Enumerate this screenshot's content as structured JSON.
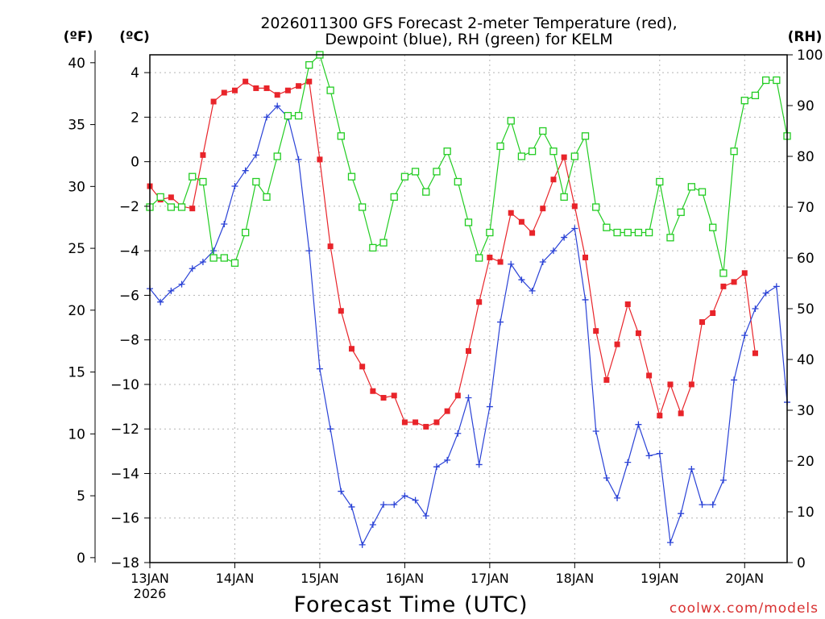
{
  "chart_data": {
    "type": "line",
    "title_line1": "2026011300 GFS Forecast 2-meter Temperature (red),",
    "title_line2": "Dewpoint (blue), RH (green) for KELM",
    "xlabel": "Forecast Time (UTC)",
    "unit_f": "(ºF)",
    "unit_c": "(ºC)",
    "unit_rh": "(RH)",
    "credit": "coolwx.com/models",
    "x_range_days": [
      0,
      7.5
    ],
    "x_ticks": [
      {
        "day": 0,
        "label": "13JAN",
        "sub": "2026"
      },
      {
        "day": 1,
        "label": "14JAN",
        "sub": ""
      },
      {
        "day": 2,
        "label": "15JAN",
        "sub": ""
      },
      {
        "day": 3,
        "label": "16JAN",
        "sub": ""
      },
      {
        "day": 4,
        "label": "17JAN",
        "sub": ""
      },
      {
        "day": 5,
        "label": "18JAN",
        "sub": ""
      },
      {
        "day": 6,
        "label": "19JAN",
        "sub": ""
      },
      {
        "day": 7,
        "label": "20JAN",
        "sub": ""
      }
    ],
    "ylim_c": [
      -18,
      4.8
    ],
    "yticks_c": [
      {
        "v": 4,
        "label": "4"
      },
      {
        "v": 2,
        "label": "2"
      },
      {
        "v": 0,
        "label": "0"
      },
      {
        "v": -2,
        "label": "−2"
      },
      {
        "v": -4,
        "label": "−4"
      },
      {
        "v": -6,
        "label": "−6"
      },
      {
        "v": -8,
        "label": "−8"
      },
      {
        "v": -10,
        "label": "−10"
      },
      {
        "v": -12,
        "label": "−12"
      },
      {
        "v": -14,
        "label": "−14"
      },
      {
        "v": -16,
        "label": "−16"
      },
      {
        "v": -18,
        "label": "−18"
      }
    ],
    "yticks_f": [
      {
        "v": 0,
        "label": "0"
      },
      {
        "v": 5,
        "label": "5"
      },
      {
        "v": 10,
        "label": "10"
      },
      {
        "v": 15,
        "label": "15"
      },
      {
        "v": 20,
        "label": "20"
      },
      {
        "v": 25,
        "label": "25"
      },
      {
        "v": 30,
        "label": "30"
      },
      {
        "v": 35,
        "label": "35"
      },
      {
        "v": 40,
        "label": "40"
      }
    ],
    "ylim_rh": [
      0,
      100
    ],
    "yticks_rh": [
      {
        "v": 0,
        "label": "0"
      },
      {
        "v": 10,
        "label": "10"
      },
      {
        "v": 20,
        "label": "20"
      },
      {
        "v": 30,
        "label": "30"
      },
      {
        "v": 40,
        "label": "40"
      },
      {
        "v": 50,
        "label": "50"
      },
      {
        "v": 60,
        "label": "60"
      },
      {
        "v": 70,
        "label": "70"
      },
      {
        "v": 80,
        "label": "80"
      },
      {
        "v": 90,
        "label": "90"
      },
      {
        "v": 100,
        "label": "100"
      }
    ],
    "series": [
      {
        "name": "2-meter Temperature (°C)",
        "color": "#e8242a",
        "marker": "filled-square",
        "points": [
          [
            0,
            -1.1
          ],
          [
            0.125,
            -1.7
          ],
          [
            0.25,
            -1.6
          ],
          [
            0.375,
            -2.0
          ],
          [
            0.5,
            -2.1
          ],
          [
            0.625,
            0.3
          ],
          [
            0.75,
            2.7
          ],
          [
            0.875,
            3.1
          ],
          [
            1.0,
            3.2
          ],
          [
            1.125,
            3.6
          ],
          [
            1.25,
            3.3
          ],
          [
            1.375,
            3.3
          ],
          [
            1.5,
            3.0
          ],
          [
            1.625,
            3.2
          ],
          [
            1.75,
            3.4
          ],
          [
            1.875,
            3.6
          ],
          [
            2.0,
            0.1
          ],
          [
            2.125,
            -3.8
          ],
          [
            2.25,
            -6.7
          ],
          [
            2.375,
            -8.4
          ],
          [
            2.5,
            -9.2
          ],
          [
            2.625,
            -10.3
          ],
          [
            2.75,
            -10.6
          ],
          [
            2.875,
            -10.5
          ],
          [
            3.0,
            -11.7
          ],
          [
            3.125,
            -11.7
          ],
          [
            3.25,
            -11.9
          ],
          [
            3.375,
            -11.7
          ],
          [
            3.5,
            -11.2
          ],
          [
            3.625,
            -10.5
          ],
          [
            3.75,
            -8.5
          ],
          [
            3.875,
            -6.3
          ],
          [
            4.0,
            -4.3
          ],
          [
            4.125,
            -4.5
          ],
          [
            4.25,
            -2.3
          ],
          [
            4.375,
            -2.7
          ],
          [
            4.5,
            -3.2
          ],
          [
            4.625,
            -2.1
          ],
          [
            4.75,
            -0.8
          ],
          [
            4.875,
            0.2
          ],
          [
            5.0,
            -2.0
          ],
          [
            5.125,
            -4.3
          ],
          [
            5.25,
            -7.6
          ],
          [
            5.375,
            -9.8
          ],
          [
            5.5,
            -8.2
          ],
          [
            5.625,
            -6.4
          ],
          [
            5.75,
            -7.7
          ],
          [
            5.875,
            -9.6
          ],
          [
            6.0,
            -11.4
          ],
          [
            6.125,
            -10.0
          ],
          [
            6.25,
            -11.3
          ],
          [
            6.375,
            -10.0
          ],
          [
            6.5,
            -7.2
          ],
          [
            6.625,
            -6.8
          ],
          [
            6.75,
            -5.6
          ],
          [
            6.875,
            -5.4
          ],
          [
            7.0,
            -5.0
          ],
          [
            7.125,
            -8.6
          ]
        ]
      },
      {
        "name": "Dewpoint (°C)",
        "color": "#2a42d6",
        "marker": "plus",
        "points": [
          [
            0,
            -5.7
          ],
          [
            0.125,
            -6.3
          ],
          [
            0.25,
            -5.8
          ],
          [
            0.375,
            -5.5
          ],
          [
            0.5,
            -4.8
          ],
          [
            0.625,
            -4.5
          ],
          [
            0.75,
            -4.0
          ],
          [
            0.875,
            -2.8
          ],
          [
            1.0,
            -1.1
          ],
          [
            1.125,
            -0.4
          ],
          [
            1.25,
            0.3
          ],
          [
            1.375,
            2.0
          ],
          [
            1.5,
            2.5
          ],
          [
            1.625,
            2.0
          ],
          [
            1.75,
            0.1
          ],
          [
            1.875,
            -4.0
          ],
          [
            2.0,
            -9.3
          ],
          [
            2.125,
            -12.0
          ],
          [
            2.25,
            -14.8
          ],
          [
            2.375,
            -15.5
          ],
          [
            2.5,
            -17.2
          ],
          [
            2.625,
            -16.3
          ],
          [
            2.75,
            -15.4
          ],
          [
            2.875,
            -15.4
          ],
          [
            3.0,
            -15.0
          ],
          [
            3.125,
            -15.2
          ],
          [
            3.25,
            -15.9
          ],
          [
            3.375,
            -13.7
          ],
          [
            3.5,
            -13.4
          ],
          [
            3.625,
            -12.2
          ],
          [
            3.75,
            -10.6
          ],
          [
            3.875,
            -13.6
          ],
          [
            4.0,
            -11.0
          ],
          [
            4.125,
            -7.2
          ],
          [
            4.25,
            -4.6
          ],
          [
            4.375,
            -5.3
          ],
          [
            4.5,
            -5.8
          ],
          [
            4.625,
            -4.5
          ],
          [
            4.75,
            -4.0
          ],
          [
            4.875,
            -3.4
          ],
          [
            5.0,
            -3.0
          ],
          [
            5.125,
            -6.2
          ],
          [
            5.25,
            -12.1
          ],
          [
            5.375,
            -14.2
          ],
          [
            5.5,
            -15.1
          ],
          [
            5.625,
            -13.5
          ],
          [
            5.75,
            -11.8
          ],
          [
            5.875,
            -13.2
          ],
          [
            6.0,
            -13.1
          ],
          [
            6.125,
            -17.1
          ],
          [
            6.25,
            -15.8
          ],
          [
            6.375,
            -13.8
          ],
          [
            6.5,
            -15.4
          ],
          [
            6.625,
            -15.4
          ],
          [
            6.75,
            -14.3
          ],
          [
            6.875,
            -9.8
          ],
          [
            7.0,
            -7.8
          ],
          [
            7.125,
            -6.6
          ],
          [
            7.25,
            -5.9
          ],
          [
            7.375,
            -5.6
          ],
          [
            7.5,
            -10.8
          ]
        ]
      },
      {
        "name": "RH (%)",
        "color": "#22cc22",
        "marker": "open-square",
        "points": [
          [
            0,
            70
          ],
          [
            0.125,
            72
          ],
          [
            0.25,
            70
          ],
          [
            0.375,
            70
          ],
          [
            0.5,
            76
          ],
          [
            0.625,
            75
          ],
          [
            0.75,
            60
          ],
          [
            0.875,
            60
          ],
          [
            1.0,
            59
          ],
          [
            1.125,
            65
          ],
          [
            1.25,
            75
          ],
          [
            1.375,
            72
          ],
          [
            1.5,
            80
          ],
          [
            1.625,
            88
          ],
          [
            1.75,
            88
          ],
          [
            1.875,
            98
          ],
          [
            2.0,
            100
          ],
          [
            2.125,
            93
          ],
          [
            2.25,
            84
          ],
          [
            2.375,
            76
          ],
          [
            2.5,
            70
          ],
          [
            2.625,
            62
          ],
          [
            2.75,
            63
          ],
          [
            2.875,
            72
          ],
          [
            3.0,
            76
          ],
          [
            3.125,
            77
          ],
          [
            3.25,
            73
          ],
          [
            3.375,
            77
          ],
          [
            3.5,
            81
          ],
          [
            3.625,
            75
          ],
          [
            3.75,
            67
          ],
          [
            3.875,
            60
          ],
          [
            4.0,
            65
          ],
          [
            4.125,
            82
          ],
          [
            4.25,
            87
          ],
          [
            4.375,
            80
          ],
          [
            4.5,
            81
          ],
          [
            4.625,
            85
          ],
          [
            4.75,
            81
          ],
          [
            4.875,
            72
          ],
          [
            5.0,
            80
          ],
          [
            5.125,
            84
          ],
          [
            5.25,
            70
          ],
          [
            5.375,
            66
          ],
          [
            5.5,
            65
          ],
          [
            5.625,
            65
          ],
          [
            5.75,
            65
          ],
          [
            5.875,
            65
          ],
          [
            6.0,
            75
          ],
          [
            6.125,
            64
          ],
          [
            6.25,
            69
          ],
          [
            6.375,
            74
          ],
          [
            6.5,
            73
          ],
          [
            6.625,
            66
          ],
          [
            6.75,
            57
          ],
          [
            6.875,
            81
          ],
          [
            7.0,
            91
          ],
          [
            7.125,
            92
          ],
          [
            7.25,
            95
          ],
          [
            7.375,
            95
          ],
          [
            7.5,
            84
          ]
        ]
      }
    ]
  }
}
